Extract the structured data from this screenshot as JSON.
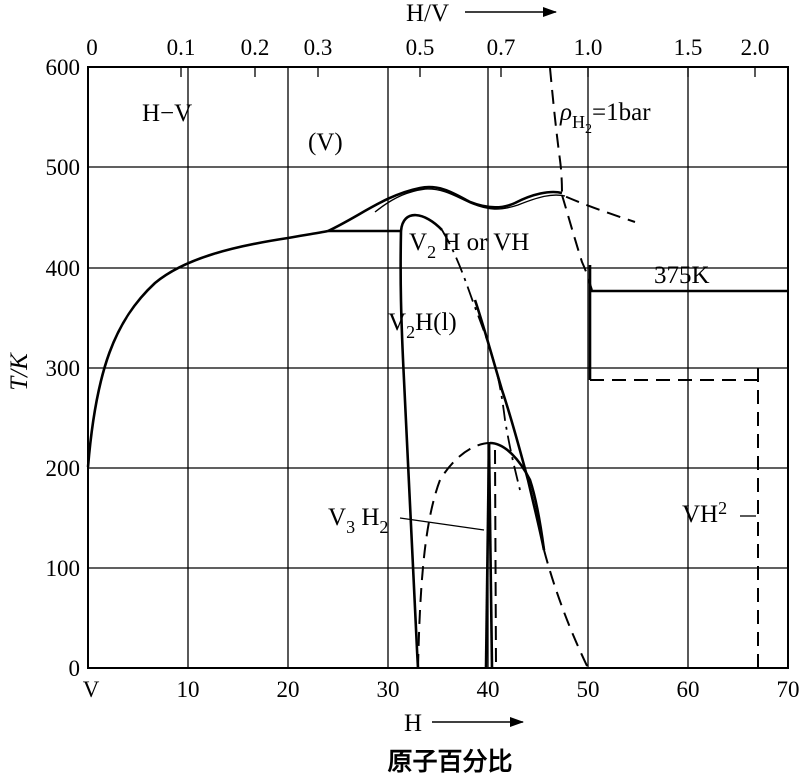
{
  "diagram": {
    "top_axis": {
      "label": "H/V",
      "ticks": [
        "0",
        "0.1",
        "0.2",
        "0.3",
        "0.5",
        "0.7",
        "1.0",
        "1.5",
        "2.0"
      ]
    },
    "y_axis": {
      "label": "T/K",
      "ticks": [
        "0",
        "100",
        "200",
        "300",
        "400",
        "500",
        "600"
      ]
    },
    "x_axis": {
      "label": "H",
      "ticks": [
        "V",
        "10",
        "20",
        "30",
        "40",
        "50",
        "60",
        "70"
      ],
      "caption": "原子百分比"
    },
    "regions": {
      "hv": "H−V",
      "v": "(V)",
      "v2h_or_vh": {
        "a": "V",
        "sub": "2",
        "b": " H or VH"
      },
      "v2h_l": {
        "a": "V",
        "sub": "2",
        "b": "H(l)"
      },
      "v3h2": {
        "a": "V",
        "sub1": "3",
        "b": " H",
        "sub2": "2"
      },
      "vh2": "VH",
      "vh2_sub": "2",
      "temp_375": "375K",
      "pressure": {
        "rho": "ρ",
        "h": "H",
        "sub": "2",
        "rest": "=1bar"
      }
    }
  }
}
